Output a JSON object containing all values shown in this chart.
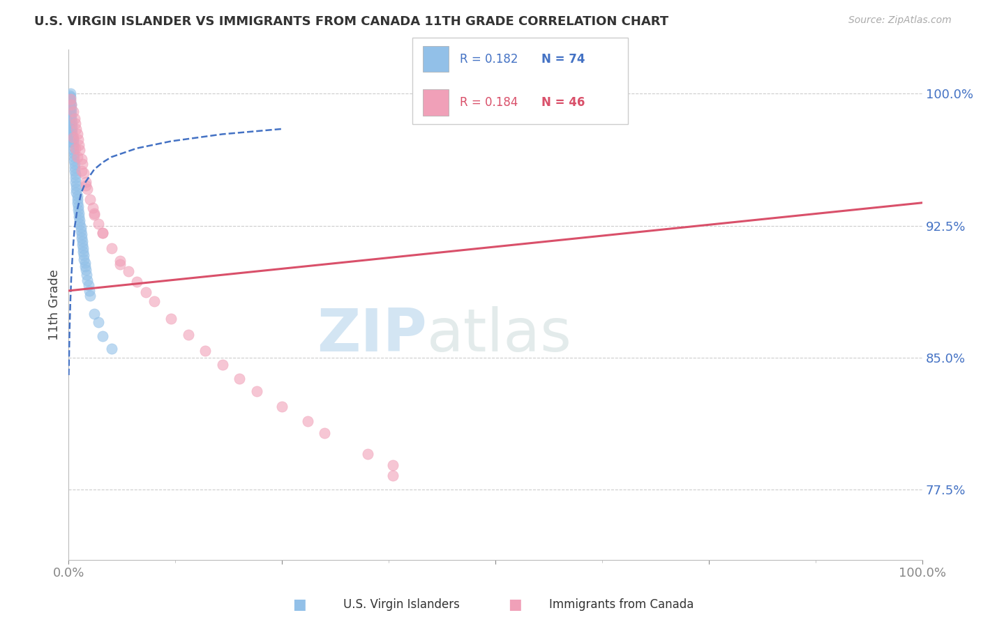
{
  "title": "U.S. VIRGIN ISLANDER VS IMMIGRANTS FROM CANADA 11TH GRADE CORRELATION CHART",
  "source": "Source: ZipAtlas.com",
  "ylabel": "11th Grade",
  "R_blue": "R = 0.182",
  "N_blue": "N = 74",
  "R_pink": "R = 0.184",
  "N_pink": "N = 46",
  "legend_blue": "U.S. Virgin Islanders",
  "legend_pink": "Immigrants from Canada",
  "blue_color": "#92C0E8",
  "pink_color": "#F0A0B8",
  "blue_line_color": "#4472C4",
  "pink_line_color": "#D9506A",
  "blue_points_x": [
    0.002,
    0.002,
    0.002,
    0.003,
    0.003,
    0.003,
    0.003,
    0.003,
    0.004,
    0.004,
    0.004,
    0.004,
    0.004,
    0.005,
    0.005,
    0.005,
    0.005,
    0.006,
    0.006,
    0.006,
    0.007,
    0.007,
    0.007,
    0.008,
    0.008,
    0.008,
    0.009,
    0.009,
    0.009,
    0.01,
    0.01,
    0.01,
    0.011,
    0.011,
    0.012,
    0.012,
    0.013,
    0.013,
    0.014,
    0.014,
    0.015,
    0.015,
    0.016,
    0.016,
    0.017,
    0.017,
    0.018,
    0.018,
    0.019,
    0.019,
    0.02,
    0.021,
    0.022,
    0.023,
    0.024,
    0.025,
    0.03,
    0.035,
    0.04,
    0.05,
    0.001,
    0.001,
    0.001,
    0.001,
    0.001,
    0.001,
    0.001,
    0.001,
    0.001,
    0.001,
    0.002,
    0.002,
    0.003,
    0.003
  ],
  "blue_points_y": [
    1.0,
    0.998,
    0.996,
    0.994,
    0.992,
    0.99,
    0.988,
    0.986,
    0.984,
    0.982,
    0.98,
    0.978,
    0.976,
    0.974,
    0.972,
    0.97,
    0.968,
    0.966,
    0.964,
    0.962,
    0.96,
    0.958,
    0.956,
    0.954,
    0.952,
    0.95,
    0.948,
    0.946,
    0.944,
    0.942,
    0.94,
    0.938,
    0.936,
    0.934,
    0.932,
    0.93,
    0.928,
    0.926,
    0.924,
    0.922,
    0.92,
    0.918,
    0.916,
    0.914,
    0.912,
    0.91,
    0.908,
    0.906,
    0.904,
    0.902,
    0.9,
    0.897,
    0.894,
    0.891,
    0.888,
    0.885,
    0.875,
    0.87,
    0.862,
    0.855,
    0.999,
    0.997,
    0.995,
    0.993,
    0.991,
    0.989,
    0.987,
    0.985,
    0.983,
    0.981,
    0.979,
    0.977,
    0.975,
    0.973
  ],
  "pink_points_x": [
    0.002,
    0.003,
    0.005,
    0.007,
    0.008,
    0.009,
    0.01,
    0.011,
    0.012,
    0.013,
    0.015,
    0.016,
    0.018,
    0.02,
    0.022,
    0.025,
    0.028,
    0.03,
    0.035,
    0.04,
    0.05,
    0.06,
    0.07,
    0.08,
    0.09,
    0.1,
    0.12,
    0.14,
    0.16,
    0.18,
    0.2,
    0.22,
    0.25,
    0.28,
    0.3,
    0.35,
    0.38,
    0.005,
    0.008,
    0.01,
    0.015,
    0.02,
    0.03,
    0.04,
    0.06,
    0.38
  ],
  "pink_points_y": [
    0.997,
    0.994,
    0.99,
    0.986,
    0.983,
    0.98,
    0.977,
    0.974,
    0.971,
    0.968,
    0.963,
    0.96,
    0.955,
    0.95,
    0.946,
    0.94,
    0.935,
    0.931,
    0.926,
    0.921,
    0.912,
    0.905,
    0.899,
    0.893,
    0.887,
    0.882,
    0.872,
    0.863,
    0.854,
    0.846,
    0.838,
    0.831,
    0.822,
    0.814,
    0.807,
    0.795,
    0.789,
    0.975,
    0.969,
    0.964,
    0.956,
    0.948,
    0.932,
    0.921,
    0.903,
    0.783
  ],
  "xmin": 0.0,
  "xmax": 1.0,
  "ymin": 0.735,
  "ymax": 1.025,
  "yticks": [
    0.775,
    0.85,
    0.925,
    1.0
  ],
  "ytick_labels": [
    "77.5%",
    "85.0%",
    "92.5%",
    "100.0%"
  ],
  "blue_trend_x": [
    0.0,
    0.001,
    0.002,
    0.003,
    0.005,
    0.007,
    0.01,
    0.015,
    0.02,
    0.03,
    0.04,
    0.05,
    0.08,
    0.12,
    0.18,
    0.25
  ],
  "blue_trend_y": [
    0.84,
    0.865,
    0.882,
    0.895,
    0.912,
    0.924,
    0.934,
    0.944,
    0.95,
    0.957,
    0.961,
    0.964,
    0.969,
    0.973,
    0.977,
    0.98
  ],
  "pink_trend_start_x": 0.0,
  "pink_trend_start_y": 0.888,
  "pink_trend_end_x": 1.0,
  "pink_trend_end_y": 0.938,
  "watermark_left": "ZIP",
  "watermark_right": "atlas"
}
